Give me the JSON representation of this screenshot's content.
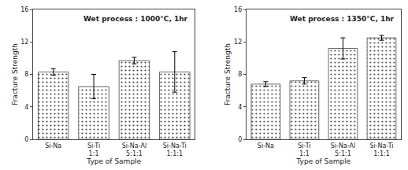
{
  "chart_data": [
    {
      "type": "bar",
      "title": "Wet process : 1000°C, 1hr",
      "categories": [
        "Si-Na",
        "Si-Ti\n1:1",
        "Si-Na-Al\n5:1:1",
        "Si-Na-Ti\n1:1:1"
      ],
      "values": [
        8.3,
        6.5,
        9.7,
        8.3
      ],
      "errors": [
        0.4,
        1.5,
        0.4,
        2.5
      ],
      "xlabel": "Type of Sample",
      "ylabel": "Fracture Strength",
      "ylim": [
        0,
        16
      ],
      "yticks": [
        0,
        4,
        8,
        12,
        16
      ],
      "color": "#c8c8c8",
      "grid": false
    },
    {
      "type": "bar",
      "title": "Wet process : 1350°C, 1hr",
      "categories": [
        "Si-Na",
        "Si-Ti\n1:1",
        "Si-Na-Al\n5:1:1",
        "Si-Na-Ti\n1:1:1"
      ],
      "values": [
        6.8,
        7.2,
        11.2,
        12.5
      ],
      "errors": [
        0.3,
        0.4,
        1.3,
        0.3
      ],
      "xlabel": "Type of Sample",
      "ylabel": "Fracture Strength",
      "ylim": [
        0,
        16
      ],
      "yticks": [
        0,
        4,
        8,
        12,
        16
      ],
      "color": "#c8c8c8",
      "grid": false
    }
  ]
}
